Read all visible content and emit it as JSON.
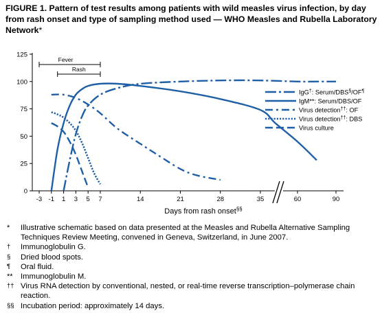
{
  "title": {
    "bold_text": "FIGURE 1. Pattern of test results among patients with wild measles virus infection, by day from rash onset and type of sampling method used — WHO Measles and Rubella Laboratory Network",
    "suffix": "*"
  },
  "chart_data": {
    "type": "line",
    "xlabel": "Days from rash onset",
    "xlabel_mark": "§§",
    "x_ticks": [
      "-3",
      "-1",
      "1",
      "3",
      "5",
      "7",
      "14",
      "21",
      "28",
      "35",
      "60",
      "90"
    ],
    "y_ticks": [
      "0",
      "25",
      "50",
      "75",
      "100",
      "125"
    ],
    "ylim": [
      0,
      125
    ],
    "x_axis_break": "between 35 and 60",
    "annotations": [
      {
        "label": "Fever",
        "x_start": -3,
        "x_end": 7
      },
      {
        "label": "Rash",
        "x_start": 0,
        "x_end": 7
      }
    ],
    "legend_position": "right",
    "series": [
      {
        "name_parts": [
          "IgG",
          "†",
          ": Serum/DBS",
          "§",
          "/OF",
          "¶"
        ],
        "style": "dash-dot long",
        "x": [
          1,
          2,
          3,
          4,
          5,
          7,
          10,
          14,
          21,
          28,
          35,
          60,
          75,
          90
        ],
        "y": [
          0,
          28,
          52,
          68,
          78,
          88,
          94,
          98,
          100,
          101,
          101,
          100,
          100,
          100
        ]
      },
      {
        "name_parts": [
          "IgM**: Serum/DBS/OF"
        ],
        "style": "solid",
        "x": [
          -1,
          0,
          1,
          2,
          3,
          4,
          5,
          7,
          10,
          14,
          21,
          28,
          35,
          45,
          60,
          75
        ],
        "y": [
          0,
          38,
          62,
          78,
          88,
          93,
          96,
          98,
          98,
          96,
          91,
          84,
          74,
          62,
          45,
          28
        ]
      },
      {
        "name_parts": [
          "Virus detection",
          "††",
          ": OF"
        ],
        "style": "dash-dot",
        "x": [
          -1,
          1,
          3,
          5,
          7,
          10,
          14,
          17,
          21,
          24,
          28
        ],
        "y": [
          88,
          88,
          85,
          79,
          71,
          57,
          43,
          33,
          20,
          14,
          10
        ]
      },
      {
        "name_parts": [
          "Virus detection",
          "††",
          ": DBS"
        ],
        "style": "dotted",
        "x": [
          -1,
          0,
          1,
          2,
          3,
          4,
          5,
          6,
          7
        ],
        "y": [
          72,
          70,
          67,
          62,
          55,
          44,
          30,
          16,
          6
        ]
      },
      {
        "name_parts": [
          "Virus culture"
        ],
        "style": "dashed",
        "x": [
          -1,
          0,
          1,
          2,
          3,
          4,
          5
        ],
        "y": [
          62,
          59,
          54,
          45,
          33,
          18,
          3
        ]
      }
    ]
  },
  "footnotes": [
    {
      "marker": "*",
      "text": "Illustrative schematic based on data presented at the Measles and Rubella Alternative Sampling Techniques Review Meeting, convened in Geneva, Switzerland, in June 2007."
    },
    {
      "marker": "†",
      "text": "Immunoglobulin G."
    },
    {
      "marker": "§",
      "text": "Dried blood spots."
    },
    {
      "marker": "¶",
      "text": "Oral fluid."
    },
    {
      "marker": "**",
      "text": "Immunoglobulin M."
    },
    {
      "marker": "††",
      "text": "Virus RNA detection by conventional, nested, or real-time reverse transcription–polymerase chain reaction."
    },
    {
      "marker": "§§",
      "text": "Incubation period: approximately 14 days."
    }
  ]
}
